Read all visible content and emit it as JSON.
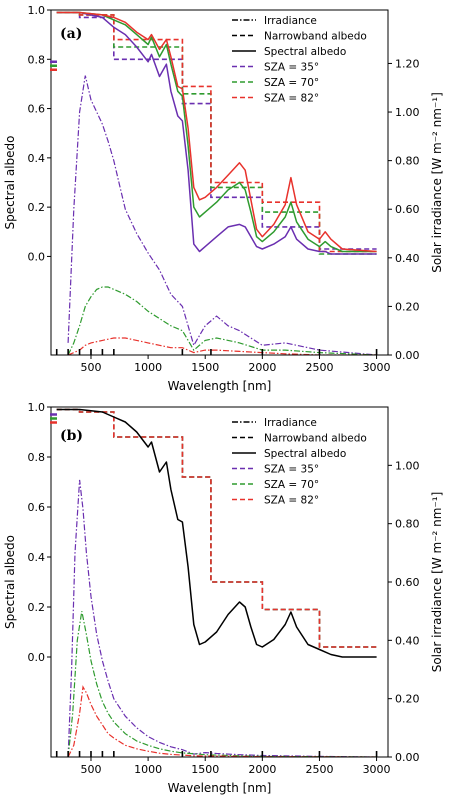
{
  "colors": {
    "irradiance": "#000000",
    "sza35": "#6a2fb0",
    "sza70": "#2f9b2f",
    "sza82": "#e8322c",
    "black": "#000000"
  },
  "legend": {
    "items": [
      {
        "label": "Irradiance",
        "style": "dashdot",
        "color": "#000000"
      },
      {
        "label": "Narrowband albedo",
        "style": "dashed",
        "color": "#000000"
      },
      {
        "label": "Spectral albedo",
        "style": "solid",
        "color": "#000000"
      },
      {
        "label": "SZA = 35°",
        "style": "dashed",
        "color": "#6a2fb0"
      },
      {
        "label": "SZA = 70°",
        "style": "dashed",
        "color": "#2f9b2f"
      },
      {
        "label": "SZA = 82°",
        "style": "dashed",
        "color": "#e8322c"
      }
    ]
  },
  "chart_data": [
    {
      "panel": "(a)",
      "type": "line",
      "xlabel": "Wavelength [nm]",
      "ylabel_left": "Spectral albedo",
      "ylabel_right": "Solar irradiance [W m⁻² nm⁻¹]",
      "xlim": [
        150,
        3100
      ],
      "x_ticks": [
        500,
        1000,
        1500,
        2000,
        2500,
        3000
      ],
      "ylim_left": [
        -0.4,
        1.0
      ],
      "left_ticks": [
        0.0,
        0.2,
        0.4,
        0.6,
        0.8,
        1.0
      ],
      "ylim_right": [
        0.0,
        1.42
      ],
      "right_ticks": [
        0.0,
        0.2,
        0.4,
        0.6,
        0.8,
        1.0,
        1.2
      ],
      "right_tick_labels": [
        "0.00",
        "0.20",
        "0.40",
        "0.60",
        "0.80",
        "1.00",
        "1.20"
      ],
      "band_edges": [
        200,
        300,
        400,
        500,
        600,
        700,
        1300,
        1550,
        2000,
        2500,
        3000
      ],
      "albedo": {
        "x": [
          200,
          400,
          600,
          700,
          800,
          900,
          1000,
          1030,
          1100,
          1160,
          1200,
          1260,
          1300,
          1350,
          1400,
          1450,
          1500,
          1600,
          1700,
          1800,
          1850,
          1900,
          1950,
          2000,
          2100,
          2200,
          2250,
          2300,
          2400,
          2500,
          2550,
          2600,
          2700,
          3000
        ],
        "series": [
          {
            "name": "SZA = 35°",
            "color": "#6a2fb0",
            "y": [
              0.99,
              0.99,
              0.97,
              0.93,
              0.9,
              0.85,
              0.79,
              0.82,
              0.73,
              0.78,
              0.67,
              0.57,
              0.55,
              0.35,
              0.05,
              0.02,
              0.04,
              0.08,
              0.12,
              0.13,
              0.12,
              0.08,
              0.04,
              0.03,
              0.05,
              0.08,
              0.12,
              0.07,
              0.03,
              0.02,
              0.02,
              0.01,
              0.01,
              0.01
            ]
          },
          {
            "name": "SZA = 70°",
            "color": "#2f9b2f",
            "y": [
              0.99,
              0.99,
              0.98,
              0.96,
              0.94,
              0.9,
              0.86,
              0.89,
              0.81,
              0.86,
              0.78,
              0.67,
              0.65,
              0.45,
              0.2,
              0.16,
              0.18,
              0.22,
              0.27,
              0.3,
              0.27,
              0.18,
              0.08,
              0.06,
              0.1,
              0.16,
              0.22,
              0.14,
              0.07,
              0.04,
              0.06,
              0.04,
              0.02,
              0.02
            ]
          },
          {
            "name": "SZA = 82°",
            "color": "#e8322c",
            "y": [
              0.99,
              0.99,
              0.98,
              0.97,
              0.95,
              0.91,
              0.88,
              0.9,
              0.84,
              0.88,
              0.81,
              0.69,
              0.68,
              0.52,
              0.28,
              0.23,
              0.24,
              0.28,
              0.33,
              0.38,
              0.35,
              0.23,
              0.11,
              0.08,
              0.13,
              0.21,
              0.32,
              0.21,
              0.1,
              0.07,
              0.1,
              0.07,
              0.03,
              0.02
            ]
          }
        ]
      },
      "narrowband": [
        {
          "name": "SZA = 35°",
          "color": "#6a2fb0",
          "edges": [
            200,
            400,
            700,
            1300,
            1550,
            2000,
            2500,
            3000
          ],
          "y": [
            0.99,
            0.97,
            0.8,
            0.62,
            0.24,
            0.12,
            0.03
          ]
        },
        {
          "name": "SZA = 70°",
          "color": "#2f9b2f",
          "edges": [
            200,
            400,
            700,
            1300,
            1550,
            2000,
            2500,
            3000
          ],
          "y": [
            0.99,
            0.98,
            0.85,
            0.66,
            0.28,
            0.18,
            0.01
          ]
        },
        {
          "name": "SZA = 82°",
          "color": "#e8322c",
          "edges": [
            200,
            400,
            700,
            1300,
            1550,
            2000,
            2500,
            3000
          ],
          "y": [
            0.99,
            0.98,
            0.88,
            0.69,
            0.3,
            0.22,
            0.02
          ]
        }
      ],
      "irradiance": [
        {
          "name": "SZA = 35°",
          "color": "#6a2fb0",
          "x": [
            300,
            350,
            400,
            450,
            500,
            550,
            600,
            650,
            700,
            750,
            800,
            900,
            1000,
            1100,
            1200,
            1300,
            1400,
            1500,
            1600,
            1700,
            1800,
            2000,
            2200,
            2500,
            3000
          ],
          "y": [
            0.05,
            0.6,
            1.0,
            1.15,
            1.05,
            1.0,
            0.95,
            0.88,
            0.8,
            0.7,
            0.6,
            0.5,
            0.42,
            0.35,
            0.25,
            0.2,
            0.04,
            0.12,
            0.16,
            0.12,
            0.1,
            0.04,
            0.05,
            0.02,
            0.0
          ]
        },
        {
          "name": "SZA = 70°",
          "color": "#2f9b2f",
          "x": [
            300,
            350,
            400,
            450,
            500,
            550,
            600,
            650,
            700,
            800,
            900,
            1000,
            1100,
            1200,
            1300,
            1400,
            1500,
            1600,
            1700,
            1800,
            2000,
            2200,
            2500,
            3000
          ],
          "y": [
            0.0,
            0.05,
            0.12,
            0.2,
            0.24,
            0.27,
            0.28,
            0.28,
            0.27,
            0.25,
            0.22,
            0.18,
            0.15,
            0.12,
            0.1,
            0.02,
            0.06,
            0.07,
            0.06,
            0.05,
            0.02,
            0.02,
            0.01,
            0.0
          ]
        },
        {
          "name": "SZA = 82°",
          "color": "#e8322c",
          "x": [
            300,
            400,
            450,
            500,
            600,
            700,
            800,
            900,
            1000,
            1100,
            1200,
            1300,
            1400,
            1500,
            1600,
            1800,
            2000,
            2200,
            2500,
            3000
          ],
          "y": [
            0.0,
            0.02,
            0.04,
            0.05,
            0.06,
            0.07,
            0.07,
            0.06,
            0.05,
            0.04,
            0.03,
            0.03,
            0.01,
            0.02,
            0.02,
            0.015,
            0.01,
            0.005,
            0.0,
            0.0
          ]
        }
      ]
    },
    {
      "panel": "(b)",
      "type": "line",
      "xlabel": "Wavelength [nm]",
      "ylabel_left": "Spectral albedo",
      "ylabel_right": "Solar irradiance [W m⁻² nm⁻¹]",
      "xlim": [
        150,
        3100
      ],
      "x_ticks": [
        500,
        1000,
        1500,
        2000,
        2500,
        3000
      ],
      "ylim_left": [
        -0.4,
        1.0
      ],
      "left_ticks": [
        0.0,
        0.2,
        0.4,
        0.6,
        0.8,
        1.0
      ],
      "ylim_right": [
        0.0,
        1.2
      ],
      "right_ticks": [
        0.0,
        0.2,
        0.4,
        0.6,
        0.8,
        1.0
      ],
      "right_tick_labels": [
        "0.00",
        "0.20",
        "0.40",
        "0.60",
        "0.80",
        "1.00"
      ],
      "band_edges": [
        200,
        300,
        400,
        500,
        600,
        700,
        1300,
        1550,
        2000,
        2500,
        3000
      ],
      "albedo": {
        "x": [
          200,
          400,
          600,
          700,
          800,
          900,
          1000,
          1030,
          1100,
          1160,
          1200,
          1260,
          1300,
          1350,
          1400,
          1450,
          1500,
          1600,
          1700,
          1800,
          1850,
          1900,
          1950,
          2000,
          2100,
          2200,
          2250,
          2300,
          2400,
          2500,
          2600,
          2700,
          3000
        ],
        "series": [
          {
            "name": "Spectral albedo",
            "color": "#000000",
            "y": [
              0.99,
              0.99,
              0.98,
              0.96,
              0.94,
              0.9,
              0.84,
              0.86,
              0.74,
              0.78,
              0.67,
              0.55,
              0.54,
              0.36,
              0.13,
              0.05,
              0.06,
              0.1,
              0.17,
              0.22,
              0.2,
              0.12,
              0.05,
              0.04,
              0.07,
              0.13,
              0.18,
              0.12,
              0.05,
              0.03,
              0.01,
              0.0,
              0.0
            ]
          }
        ]
      },
      "narrowband": [
        {
          "name": "SZA = 35°",
          "color": "#6a2fb0",
          "edges": [
            200,
            400,
            700,
            1300,
            1550,
            2000,
            2500,
            3000
          ],
          "y": [
            0.99,
            0.98,
            0.88,
            0.72,
            0.3,
            0.19,
            0.04
          ]
        },
        {
          "name": "SZA = 70°",
          "color": "#2f9b2f",
          "edges": [
            200,
            400,
            700,
            1300,
            1550,
            2000,
            2500,
            3000
          ],
          "y": [
            0.99,
            0.98,
            0.88,
            0.72,
            0.3,
            0.19,
            0.04
          ]
        },
        {
          "name": "SZA = 82°",
          "color": "#e8322c",
          "edges": [
            200,
            400,
            700,
            1300,
            1550,
            2000,
            2500,
            3000
          ],
          "y": [
            0.99,
            0.98,
            0.88,
            0.72,
            0.3,
            0.19,
            0.04
          ]
        }
      ],
      "irradiance": [
        {
          "name": "SZA = 35°",
          "color": "#6a2fb0",
          "x": [
            300,
            330,
            360,
            400,
            430,
            460,
            500,
            550,
            600,
            650,
            700,
            800,
            900,
            1000,
            1100,
            1200,
            1300,
            1400,
            1500,
            1600,
            1800,
            2000,
            2500,
            3000
          ],
          "y": [
            0.0,
            0.3,
            0.7,
            0.95,
            0.85,
            0.7,
            0.55,
            0.42,
            0.33,
            0.26,
            0.2,
            0.14,
            0.1,
            0.07,
            0.05,
            0.035,
            0.025,
            0.01,
            0.015,
            0.012,
            0.008,
            0.005,
            0.002,
            0.0
          ]
        },
        {
          "name": "SZA = 70°",
          "color": "#2f9b2f",
          "x": [
            300,
            340,
            380,
            420,
            460,
            500,
            550,
            600,
            650,
            700,
            800,
            900,
            1000,
            1100,
            1200,
            1300,
            1500,
            1800,
            2000,
            3000
          ],
          "y": [
            0.0,
            0.15,
            0.4,
            0.5,
            0.42,
            0.33,
            0.25,
            0.19,
            0.15,
            0.12,
            0.08,
            0.055,
            0.04,
            0.028,
            0.02,
            0.014,
            0.008,
            0.004,
            0.002,
            0.0
          ]
        },
        {
          "name": "SZA = 82°",
          "color": "#e8322c",
          "x": [
            300,
            350,
            400,
            430,
            460,
            500,
            550,
            600,
            650,
            700,
            800,
            900,
            1000,
            1100,
            1200,
            1400,
            1600,
            2000,
            3000
          ],
          "y": [
            0.0,
            0.04,
            0.15,
            0.24,
            0.22,
            0.18,
            0.14,
            0.11,
            0.08,
            0.065,
            0.04,
            0.028,
            0.02,
            0.013,
            0.009,
            0.004,
            0.003,
            0.001,
            0.0
          ]
        }
      ]
    }
  ]
}
